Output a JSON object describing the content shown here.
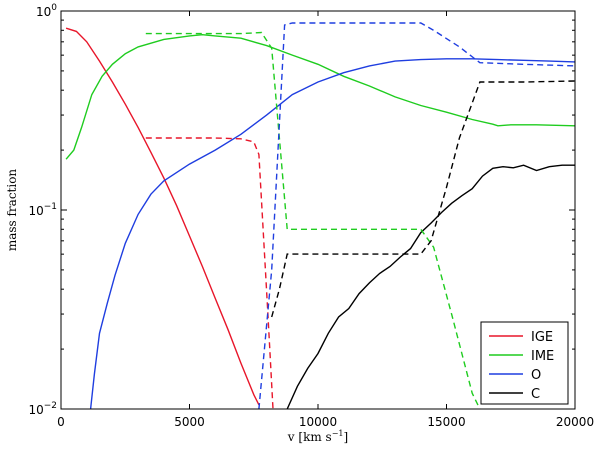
{
  "chart_data": {
    "type": "line",
    "xlabel": "v  [km s",
    "xlabel_exp": "−1",
    "xlabel_tail": "]",
    "ylabel": "mass fraction",
    "xlim": [
      0,
      20000
    ],
    "ylim": [
      0.01,
      1
    ],
    "yscale": "log",
    "grid": false,
    "legend_position": "lower-right",
    "xticks": [
      0,
      5000,
      10000,
      15000,
      20000
    ],
    "xtick_labels": [
      "0",
      "5000",
      "10000",
      "15000",
      "20000"
    ],
    "yticks": [
      0.01,
      0.1,
      1
    ],
    "ytick_labels": [
      {
        "base": "10",
        "exp": "−2"
      },
      {
        "base": "10",
        "exp": "−1"
      },
      {
        "base": "10",
        "exp": "0"
      }
    ],
    "series": [
      {
        "name": "IGE",
        "color": "#e8162a",
        "style": "solid",
        "x": [
          200,
          600,
          1000,
          1500,
          2000,
          2500,
          3000,
          3500,
          4000,
          4500,
          5000,
          5500,
          6000,
          6500,
          7000,
          7500,
          7700
        ],
        "y": [
          0.82,
          0.79,
          0.7,
          0.56,
          0.44,
          0.34,
          0.26,
          0.195,
          0.145,
          0.105,
          0.074,
          0.052,
          0.036,
          0.025,
          0.017,
          0.0118,
          0.0105
        ]
      },
      {
        "name": "IME",
        "color": "#1fcc1f",
        "style": "solid",
        "x": [
          200,
          500,
          800,
          1200,
          1600,
          2000,
          2500,
          3000,
          4000,
          5000,
          5500,
          6000,
          7000,
          8000,
          9000,
          10000,
          11000,
          12000,
          13000,
          14000,
          15000,
          16000,
          16800,
          17000,
          17500,
          18500,
          20000
        ],
        "y": [
          0.18,
          0.2,
          0.26,
          0.38,
          0.47,
          0.54,
          0.61,
          0.66,
          0.72,
          0.75,
          0.76,
          0.75,
          0.73,
          0.67,
          0.6,
          0.54,
          0.47,
          0.42,
          0.37,
          0.335,
          0.31,
          0.285,
          0.27,
          0.265,
          0.268,
          0.268,
          0.265
        ]
      },
      {
        "name": "O",
        "color": "#1f3ee0",
        "style": "solid",
        "x": [
          1150,
          1300,
          1500,
          1800,
          2100,
          2500,
          3000,
          3500,
          4000,
          5000,
          6000,
          7000,
          8000,
          9000,
          10000,
          11000,
          12000,
          13000,
          14000,
          15000,
          16000,
          17000,
          18000,
          19000,
          20000
        ],
        "y": [
          0.01,
          0.015,
          0.024,
          0.034,
          0.047,
          0.068,
          0.095,
          0.12,
          0.14,
          0.17,
          0.2,
          0.24,
          0.3,
          0.38,
          0.44,
          0.49,
          0.53,
          0.56,
          0.57,
          0.575,
          0.575,
          0.57,
          0.565,
          0.56,
          0.555
        ]
      },
      {
        "name": "C",
        "color": "#000000",
        "style": "solid",
        "x": [
          8800,
          9200,
          9600,
          10000,
          10400,
          10800,
          11200,
          11600,
          12000,
          12400,
          12800,
          13200,
          13600,
          14000,
          14400,
          14800,
          15200,
          15600,
          16000,
          16400,
          16800,
          17200,
          17600,
          18000,
          18500,
          19000,
          19500,
          20000
        ],
        "y": [
          0.01,
          0.013,
          0.016,
          0.019,
          0.024,
          0.029,
          0.032,
          0.038,
          0.043,
          0.048,
          0.052,
          0.058,
          0.064,
          0.077,
          0.086,
          0.097,
          0.108,
          0.118,
          0.128,
          0.148,
          0.162,
          0.165,
          0.163,
          0.168,
          0.158,
          0.165,
          0.168,
          0.168
        ]
      },
      {
        "name": "IGE",
        "color": "#e8162a",
        "style": "dashed",
        "x": [
          3300,
          4500,
          6000,
          7000,
          7500,
          7700,
          8050,
          8250
        ],
        "y": [
          0.23,
          0.23,
          0.23,
          0.228,
          0.22,
          0.19,
          0.03,
          0.01
        ]
      },
      {
        "name": "IME",
        "color": "#1fcc1f",
        "style": "dashed",
        "x": [
          3300,
          5000,
          7000,
          7800,
          8200,
          8800,
          10000,
          12000,
          14000,
          14500,
          15200,
          16000,
          16300
        ],
        "y": [
          0.77,
          0.77,
          0.77,
          0.78,
          0.65,
          0.08,
          0.08,
          0.08,
          0.08,
          0.065,
          0.03,
          0.012,
          0.01
        ]
      },
      {
        "name": "O",
        "color": "#1f3ee0",
        "style": "dashed",
        "x": [
          7700,
          8200,
          8700,
          9000,
          11000,
          14000,
          14500,
          15500,
          16300,
          18000,
          20000
        ],
        "y": [
          0.01,
          0.05,
          0.85,
          0.87,
          0.87,
          0.87,
          0.8,
          0.66,
          0.55,
          0.54,
          0.53
        ]
      },
      {
        "name": "C",
        "color": "#000000",
        "style": "dashed",
        "x": [
          8200,
          8500,
          8800,
          9000,
          11000,
          14000,
          14400,
          15000,
          15500,
          16300,
          18000,
          20000
        ],
        "y": [
          0.029,
          0.04,
          0.06,
          0.06,
          0.06,
          0.06,
          0.07,
          0.13,
          0.23,
          0.44,
          0.44,
          0.445
        ]
      }
    ],
    "legend": [
      {
        "label": "IGE",
        "color": "#e8162a"
      },
      {
        "label": "IME",
        "color": "#1fcc1f"
      },
      {
        "label": "O",
        "color": "#1f3ee0"
      },
      {
        "label": "C",
        "color": "#000000"
      }
    ]
  }
}
